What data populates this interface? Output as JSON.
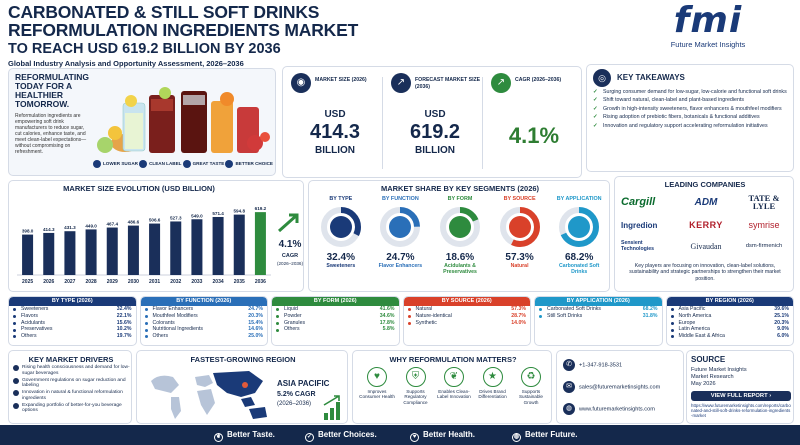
{
  "header": {
    "title_line1": "CARBONATED & STILL SOFT DRINKS",
    "title_line2": "REFORMULATION INGREDIENTS MARKET",
    "title_line3": "TO REACH USD 619.2 BILLION BY 2036",
    "subtitle": "Global Industry Analysis and Opportunity Assessment, 2026–2036",
    "logo_text": "fmi",
    "logo_caption": "Future Market Insights"
  },
  "hero": {
    "headline_line1": "REFORMULATING",
    "headline_line2": "TODAY FOR A",
    "headline_line3": "HEALTHIER",
    "headline_line4": "TOMORROW.",
    "body": "Reformulation ingredients are empowering soft drink manufacturers to reduce sugar, cut calories, enhance taste, and meet clean-label expectations—without compromising on refreshment.",
    "badges": [
      "LOWER SUGAR",
      "CLEAN LABEL",
      "GREAT TASTE",
      "BETTER CHOICE"
    ]
  },
  "metrics": [
    {
      "label": "MARKET SIZE (2026)",
      "unit": "USD",
      "value": "414.3",
      "suffix": "BILLION"
    },
    {
      "label": "FORECAST MARKET SIZE (2036)",
      "unit": "USD",
      "value": "619.2",
      "suffix": "BILLION"
    },
    {
      "label": "CAGR (2026–2036)",
      "unit": "",
      "value": "4.1%",
      "suffix": ""
    }
  ],
  "takeaways": {
    "title": "KEY TAKEAWAYS",
    "items": [
      "Surging consumer demand for low-sugar, low-calorie and functional soft drinks",
      "Shift toward natural, clean-label and plant-based ingredients",
      "Growth in high-intensity sweeteners, flavor enhancers & mouthfeel modifiers",
      "Rising adoption of prebiotic fibers, botanicals & functional additives",
      "Innovation and regulatory support accelerating reformulation initiatives"
    ]
  },
  "chart_data": {
    "type": "bar",
    "title": "MARKET SIZE EVOLUTION (USD BILLION)",
    "categories": [
      "2025",
      "2026",
      "2027",
      "2028",
      "2029",
      "2030",
      "2031",
      "2032",
      "2033",
      "2034",
      "2035",
      "2036"
    ],
    "values": [
      398.0,
      414.3,
      431.3,
      449.0,
      467.4,
      486.6,
      506.6,
      527.3,
      549.0,
      571.4,
      594.8,
      619.2
    ],
    "value_labels": [
      "398.0",
      "414.3",
      "431.3",
      "449.0",
      "467.4",
      "486.6",
      "506.6",
      "527.3",
      "549.0",
      "571.4",
      "594.8",
      "619.2"
    ],
    "ylim": [
      0,
      650
    ],
    "cagr_value": "4.1%",
    "cagr_label": "CAGR",
    "cagr_period": "(2026–2036)"
  },
  "segments": {
    "title": "MARKET SHARE BY KEY SEGMENTS (2026)",
    "items": [
      {
        "head": "BY TYPE",
        "pct": "32.4%",
        "share": 32.4,
        "name": "Sweeteners",
        "color": "#1a3a78"
      },
      {
        "head": "BY FUNCTION",
        "pct": "24.7%",
        "share": 24.7,
        "name": "Flavor Enhancers",
        "color": "#2a6fb8"
      },
      {
        "head": "BY FORM",
        "pct": "18.6%",
        "share": 18.6,
        "name": "Acidulants & Preservatives",
        "color": "#2e8b3e"
      },
      {
        "head": "BY SOURCE",
        "pct": "57.3%",
        "share": 57.3,
        "name": "Natural",
        "color": "#d9412a"
      },
      {
        "head": "BY APPLICATION",
        "pct": "68.2%",
        "share": 68.2,
        "name": "Carbonated Soft Drinks",
        "color": "#1f98c9"
      }
    ]
  },
  "companies": {
    "title": "LEADING COMPANIES",
    "logos": [
      "Cargill",
      "ADM",
      "TATE & LYLE",
      "Ingredion",
      "KERRY",
      "symrise",
      "Sensient Technologies",
      "Givaudan",
      "dsm-firmenich"
    ],
    "note": "Key players are focusing on innovation, clean-label solutions, sustainability and strategic partnerships to strengthen their market position."
  },
  "tables": [
    {
      "title": "BY TYPE (2026)",
      "color": "#1a3a78",
      "rows": [
        [
          "Sweeteners",
          "32.4%"
        ],
        [
          "Flavors",
          "22.1%"
        ],
        [
          "Acidulants",
          "15.6%"
        ],
        [
          "Preservatives",
          "10.2%"
        ],
        [
          "Others",
          "19.7%"
        ]
      ]
    },
    {
      "title": "BY FUNCTION (2026)",
      "color": "#2a6fb8",
      "rows": [
        [
          "Flavor Enhancers",
          "24.7%"
        ],
        [
          "Mouthfeel Modifiers",
          "20.3%"
        ],
        [
          "Colorants",
          "15.4%"
        ],
        [
          "Nutritional Ingredients",
          "14.6%"
        ],
        [
          "Others",
          "25.0%"
        ]
      ]
    },
    {
      "title": "BY FORM (2026)",
      "color": "#2e8b3e",
      "rows": [
        [
          "Liquid",
          "41.6%"
        ],
        [
          "Powder",
          "34.6%"
        ],
        [
          "Granules",
          "17.8%"
        ],
        [
          "Others",
          "5.8%"
        ]
      ]
    },
    {
      "title": "BY SOURCE (2026)",
      "color": "#d9412a",
      "rows": [
        [
          "Natural",
          "57.3%"
        ],
        [
          "Nature-identical",
          "28.7%"
        ],
        [
          "Synthetic",
          "14.0%"
        ]
      ]
    },
    {
      "title": "BY APPLICATION (2026)",
      "color": "#1f98c9",
      "rows": [
        [
          "Carbonated Soft Drinks",
          "68.2%"
        ],
        [
          "Still Soft Drinks",
          "31.8%"
        ]
      ]
    },
    {
      "title": "BY REGION (2026)",
      "color": "#1a3a78",
      "rows": [
        [
          "Asia Pacific",
          "39.6%"
        ],
        [
          "North America",
          "25.1%"
        ],
        [
          "Europe",
          "20.3%"
        ],
        [
          "Latin America",
          "9.0%"
        ],
        [
          "Middle East & Africa",
          "6.0%"
        ]
      ]
    }
  ],
  "drivers": {
    "title": "KEY MARKET DRIVERS",
    "items": [
      "Rising health consciousness and demand for low-sugar beverages",
      "Government regulations on sugar reduction and labeling",
      "Innovation in natural & functional reformulation ingredients",
      "Expanding portfolio of better-for-you beverage options"
    ]
  },
  "region": {
    "title": "FASTEST-GROWING REGION",
    "name": "ASIA PACIFIC",
    "cagr": "5.2% CAGR",
    "period": "(2026–2036)"
  },
  "why": {
    "title": "WHY REFORMULATION MATTERS?",
    "items": [
      "Improves Consumer Health",
      "Supports Regulatory Compliance",
      "Enables Clean-Label Innovation",
      "Drives Brand Differentiation",
      "Supports Sustainable Growth"
    ]
  },
  "contact": {
    "phone": "+1-347-918-3531",
    "email": "sales@futuremarketinsights.com",
    "web": "www.futuremarketinsights.com"
  },
  "source": {
    "title": "SOURCE",
    "line1": "Future Market Insights",
    "line2": "Market Research",
    "line3": "May 2026",
    "button": "VIEW FULL REPORT",
    "url": "https://www.futuremarketinsights.com/reports/carbonated-and-still-soft-drinks-reformulation-ingredients-market"
  },
  "footer": [
    "Better Taste.",
    "Better Choices.",
    "Better Health.",
    "Better Future."
  ]
}
